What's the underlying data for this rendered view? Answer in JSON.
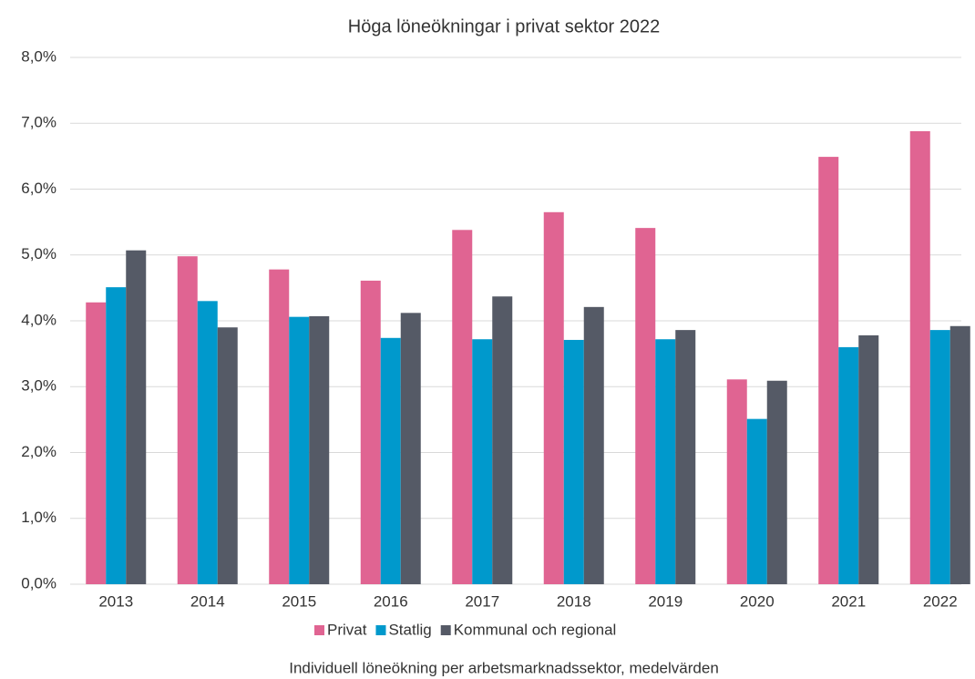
{
  "chart_data": {
    "type": "bar",
    "title": "Höga löneökningar i privat sektor 2022",
    "subtitle": "Individuell löneökning per arbetsmarknadssektor, medelvärden",
    "categories": [
      "2013",
      "2014",
      "2015",
      "2016",
      "2017",
      "2018",
      "2019",
      "2020",
      "2021",
      "2022"
    ],
    "series": [
      {
        "name": "Privat",
        "color": "#e06492",
        "values": [
          4.28,
          4.98,
          4.78,
          4.61,
          5.38,
          5.65,
          5.41,
          3.11,
          6.49,
          6.88
        ]
      },
      {
        "name": "Statlig",
        "color": "#0099cc",
        "values": [
          4.51,
          4.3,
          4.06,
          3.74,
          3.72,
          3.71,
          3.72,
          2.51,
          3.6,
          3.86
        ]
      },
      {
        "name": "Kommunal och regional",
        "color": "#555a66",
        "values": [
          5.07,
          3.9,
          4.07,
          4.12,
          4.37,
          4.21,
          3.86,
          3.09,
          3.78,
          3.92
        ]
      }
    ],
    "ylim": [
      0,
      8
    ],
    "yticks": [
      {
        "value": 0,
        "label": "0,0%"
      },
      {
        "value": 1,
        "label": "1,0%"
      },
      {
        "value": 2,
        "label": "2,0%"
      },
      {
        "value": 3,
        "label": "3,0%"
      },
      {
        "value": 4,
        "label": "4,0%"
      },
      {
        "value": 5,
        "label": "5,0%"
      },
      {
        "value": 6,
        "label": "6,0%"
      },
      {
        "value": 7,
        "label": "7,0%"
      },
      {
        "value": 8,
        "label": "8,0%"
      }
    ],
    "grid": true,
    "legend": "bottom"
  }
}
